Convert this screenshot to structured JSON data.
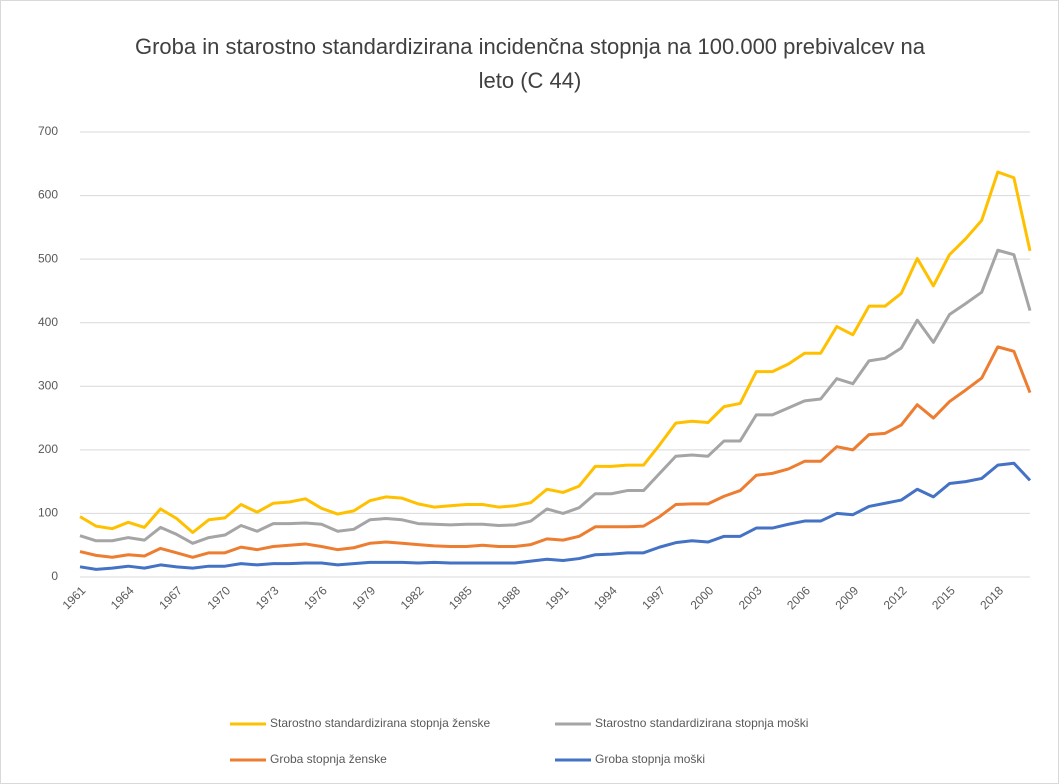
{
  "chart_data": {
    "type": "line",
    "title": "Groba in starostno standardizirana  incidenčna stopnja na 100.000 prebivalcev na leto (C 44)",
    "categories": [
      "1961",
      null,
      null,
      "1964",
      null,
      null,
      "1967",
      null,
      null,
      "1970",
      null,
      null,
      "1973",
      null,
      null,
      "1976",
      null,
      null,
      "1979",
      null,
      null,
      "1982",
      null,
      null,
      "1985",
      null,
      null,
      "1988",
      null,
      null,
      "1991",
      null,
      null,
      "1994",
      null,
      null,
      "1997",
      null,
      null,
      "2000",
      null,
      null,
      "2003",
      null,
      null,
      "2006",
      null,
      null,
      "2009",
      null,
      null,
      "2012",
      null,
      null,
      "2015",
      null,
      null,
      "2018",
      null,
      null
    ],
    "series": [
      {
        "name": "Starostno standardizirana stopnja ženske",
        "color": "#ffc000",
        "values": [
          95,
          80,
          76,
          86,
          78,
          107,
          92,
          70,
          90,
          93,
          114,
          102,
          116,
          118,
          123,
          108,
          99,
          104,
          120,
          126,
          124,
          115,
          110,
          112,
          114,
          114,
          110,
          112,
          117,
          138,
          133,
          143,
          174,
          174,
          176,
          176,
          208,
          242,
          245,
          243,
          268,
          273,
          323,
          323,
          335,
          352,
          352,
          394,
          381,
          426,
          426,
          446,
          501,
          458,
          507,
          532,
          561,
          637,
          628,
          513
        ]
      },
      {
        "name": "Starostno standardizirana stopnja moški",
        "color": "#a5a5a5",
        "values": [
          65,
          57,
          57,
          62,
          58,
          78,
          67,
          53,
          62,
          66,
          81,
          72,
          84,
          84,
          85,
          83,
          72,
          75,
          90,
          92,
          90,
          84,
          83,
          82,
          83,
          83,
          81,
          82,
          88,
          107,
          100,
          109,
          131,
          131,
          136,
          136,
          163,
          190,
          192,
          190,
          214,
          214,
          255,
          255,
          266,
          277,
          280,
          312,
          304,
          340,
          344,
          360,
          404,
          369,
          413,
          430,
          448,
          514,
          507,
          419
        ]
      },
      {
        "name": "Groba stopnja ženske",
        "color": "#ed7d31",
        "values": [
          40,
          34,
          31,
          35,
          33,
          45,
          38,
          31,
          38,
          38,
          47,
          43,
          48,
          50,
          52,
          48,
          43,
          46,
          53,
          55,
          53,
          51,
          49,
          48,
          48,
          50,
          48,
          48,
          51,
          60,
          58,
          64,
          79,
          79,
          79,
          80,
          95,
          114,
          115,
          115,
          127,
          136,
          160,
          163,
          170,
          182,
          182,
          205,
          200,
          224,
          226,
          239,
          271,
          250,
          276,
          294,
          313,
          362,
          355,
          290
        ]
      },
      {
        "name": "Groba stopnja moški",
        "color": "#4472c4",
        "values": [
          16,
          12,
          14,
          17,
          14,
          19,
          16,
          14,
          17,
          17,
          21,
          19,
          21,
          21,
          22,
          22,
          19,
          21,
          23,
          23,
          23,
          22,
          23,
          22,
          22,
          22,
          22,
          22,
          25,
          28,
          26,
          29,
          35,
          36,
          38,
          38,
          47,
          54,
          57,
          55,
          64,
          64,
          77,
          77,
          83,
          88,
          88,
          100,
          98,
          111,
          116,
          121,
          138,
          126,
          147,
          150,
          155,
          176,
          179,
          152
        ]
      }
    ],
    "ylim": [
      0,
      700
    ],
    "yticks": [
      0,
      100,
      200,
      300,
      400,
      500,
      600,
      700
    ],
    "grid": true,
    "legend": "bottom"
  }
}
